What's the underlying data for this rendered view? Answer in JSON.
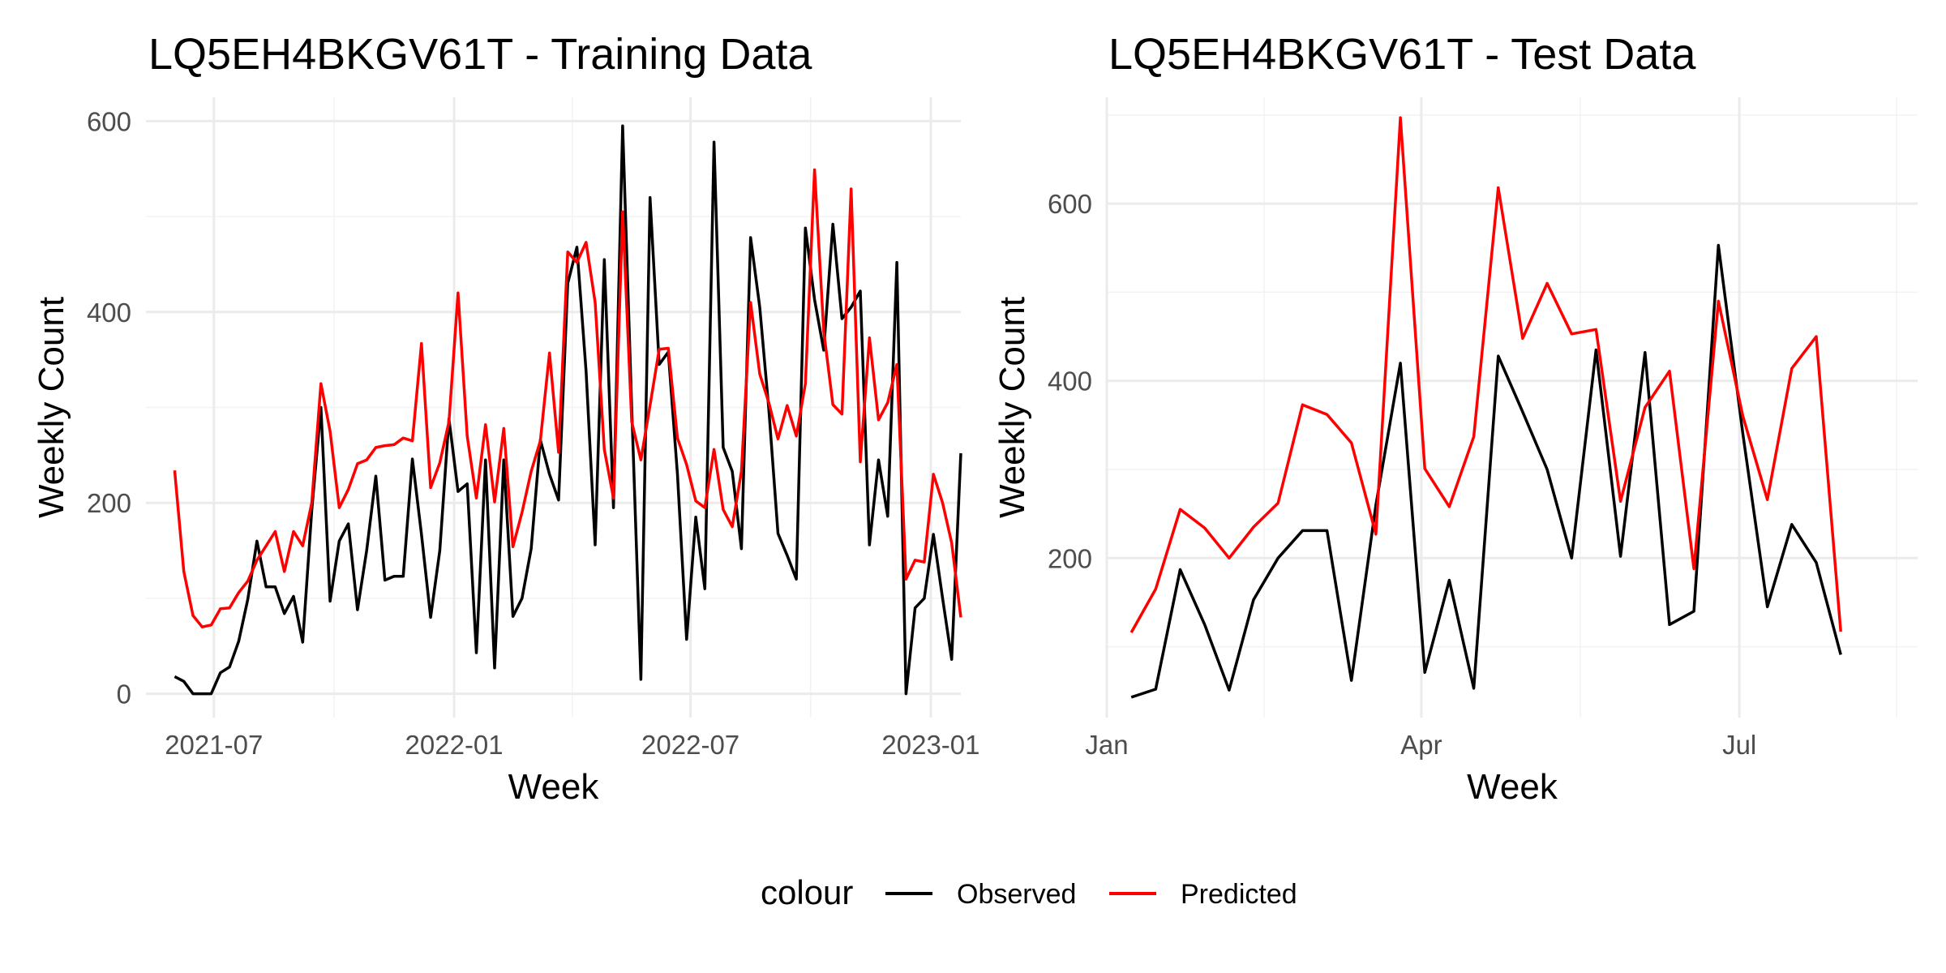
{
  "legend": {
    "title": "colour",
    "items": [
      {
        "label": "Observed",
        "color": "#000000"
      },
      {
        "label": "Predicted",
        "color": "#ff0000"
      }
    ]
  },
  "chart_data": [
    {
      "type": "line",
      "title": "LQ5EH4BKGV61T - Training Data",
      "xlabel": "Week",
      "ylabel": "Weekly Count",
      "x_type": "date",
      "xlim": [
        "2021-05-10",
        "2023-01-24"
      ],
      "ylim": [
        -25,
        625
      ],
      "y_ticks": [
        0,
        200,
        400,
        600
      ],
      "y_tick_labels": [
        "0",
        "200",
        "400",
        "600"
      ],
      "x_ticks": [
        "2021-07-01",
        "2022-01-01",
        "2022-07-01",
        "2023-01-01"
      ],
      "x_tick_labels": [
        "2021-07",
        "2022-01",
        "2022-07",
        "2023-01"
      ],
      "grid": true,
      "x_start": "2021-06-01",
      "x_step_days": 7,
      "series": [
        {
          "name": "Observed",
          "color": "#000000",
          "values": [
            18,
            13,
            0,
            0,
            0,
            22,
            28,
            55,
            99,
            160,
            112,
            112,
            84,
            102,
            54,
            192,
            300,
            97,
            160,
            178,
            88,
            150,
            228,
            119,
            123,
            123,
            246,
            167,
            80,
            150,
            288,
            212,
            220,
            43,
            245,
            27,
            245,
            81,
            100,
            152,
            266,
            230,
            203,
            430,
            468,
            338,
            156,
            455,
            195,
            595,
            300,
            15,
            520,
            345,
            358,
            230,
            57,
            185,
            110,
            578,
            258,
            233,
            152,
            478,
            405,
            298,
            168,
            145,
            120,
            488,
            413,
            360,
            492,
            393,
            405,
            422,
            156,
            245,
            186,
            452,
            0,
            90,
            100,
            167,
            100,
            36,
            252
          ],
          "labels": []
        },
        {
          "name": "Predicted",
          "color": "#ff0000",
          "values": [
            234,
            128,
            82,
            70,
            72,
            89,
            90,
            106,
            118,
            140,
            155,
            170,
            128,
            170,
            155,
            200,
            325,
            275,
            195,
            214,
            241,
            245,
            258,
            260,
            261,
            268,
            265,
            367,
            216,
            242,
            285,
            420,
            270,
            205,
            282,
            201,
            278,
            154,
            190,
            233,
            265,
            357,
            253,
            463,
            452,
            473,
            410,
            256,
            205,
            505,
            285,
            245,
            302,
            361,
            362,
            268,
            240,
            202,
            195,
            256,
            193,
            175,
            233,
            410,
            335,
            305,
            267,
            302,
            270,
            325,
            549,
            380,
            303,
            293,
            529,
            243,
            373,
            287,
            305,
            345,
            120,
            140,
            138,
            230,
            200,
            158,
            80
          ],
          "labels": []
        }
      ]
    },
    {
      "type": "line",
      "title": "LQ5EH4BKGV61T - Test Data",
      "xlabel": "Week",
      "ylabel": "Weekly Count",
      "x_type": "date",
      "xlim": [
        "2023-01-01",
        "2023-08-21"
      ],
      "ylim": [
        20,
        720
      ],
      "y_ticks": [
        200,
        400,
        600
      ],
      "y_tick_labels": [
        "200",
        "400",
        "600"
      ],
      "x_ticks": [
        "2023-01-01",
        "2023-04-01",
        "2023-07-01"
      ],
      "x_tick_labels": [
        "Jan",
        "Apr",
        "Jul"
      ],
      "grid": true,
      "x_start": "2023-01-08",
      "x_step_days": 7,
      "series": [
        {
          "name": "Observed",
          "color": "#000000",
          "values": [
            43,
            52,
            187,
            125,
            51,
            153,
            200,
            231,
            231,
            62,
            260,
            420,
            71,
            175,
            53,
            428,
            365,
            300,
            200,
            435,
            202,
            432,
            125,
            140,
            553,
            340,
            145,
            238,
            195,
            91
          ],
          "labels": []
        },
        {
          "name": "Predicted",
          "color": "#ff0000",
          "values": [
            116,
            165,
            255,
            234,
            200,
            235,
            262,
            373,
            362,
            330,
            227,
            697,
            301,
            258,
            337,
            618,
            448,
            510,
            453,
            458,
            264,
            370,
            411,
            188,
            490,
            360,
            266,
            414,
            450,
            117
          ],
          "labels": []
        }
      ]
    }
  ]
}
